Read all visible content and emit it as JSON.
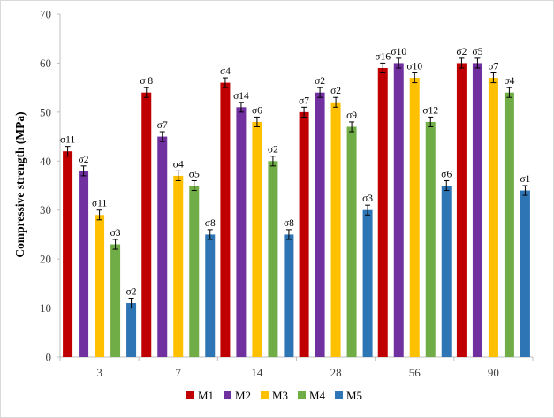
{
  "chart_data": {
    "type": "bar",
    "title": "",
    "xlabel": "",
    "ylabel": "Compressive strength (MPa)",
    "ylim": [
      0,
      70
    ],
    "yticks": [
      "0",
      "10",
      "20",
      "30",
      "40",
      "50",
      "60",
      "70"
    ],
    "categories": [
      "3",
      "7",
      "14",
      "28",
      "56",
      "90"
    ],
    "grid": false,
    "legend_position": "bottom",
    "series": [
      {
        "name": "M1",
        "color": "#c00000",
        "values": [
          42,
          54,
          56,
          50,
          59,
          60
        ],
        "errors": [
          1,
          1,
          1,
          1,
          1,
          1
        ],
        "labels": [
          "σ11",
          "σ 8",
          "σ4",
          "σ7",
          "σ16",
          "σ2"
        ]
      },
      {
        "name": "M2",
        "color": "#7030a0",
        "values": [
          38,
          45,
          51,
          54,
          60,
          60
        ],
        "errors": [
          1,
          1,
          1,
          1,
          1,
          1
        ],
        "labels": [
          "σ2",
          "σ7",
          "σ14",
          "σ2",
          "σ10",
          "σ5"
        ]
      },
      {
        "name": "M3",
        "color": "#ffc000",
        "values": [
          29,
          37,
          48,
          52,
          57,
          57
        ],
        "errors": [
          1,
          1,
          1,
          1,
          1,
          1
        ],
        "labels": [
          "σ11",
          "σ4",
          "σ6",
          "σ2",
          "σ10",
          "σ7"
        ]
      },
      {
        "name": "M4",
        "color": "#70ad47",
        "values": [
          23,
          35,
          40,
          47,
          48,
          54
        ],
        "errors": [
          1,
          1,
          1,
          1,
          1,
          1
        ],
        "labels": [
          "σ3",
          "σ5",
          "σ2",
          "σ9",
          "σ12",
          "σ4"
        ]
      },
      {
        "name": "M5",
        "color": "#2e75b6",
        "values": [
          11,
          25,
          25,
          30,
          35,
          34
        ],
        "errors": [
          1,
          1,
          1,
          1,
          1,
          1
        ],
        "labels": [
          "σ2",
          "σ8",
          "σ8",
          "σ3",
          "σ6",
          "σ1"
        ]
      }
    ]
  }
}
